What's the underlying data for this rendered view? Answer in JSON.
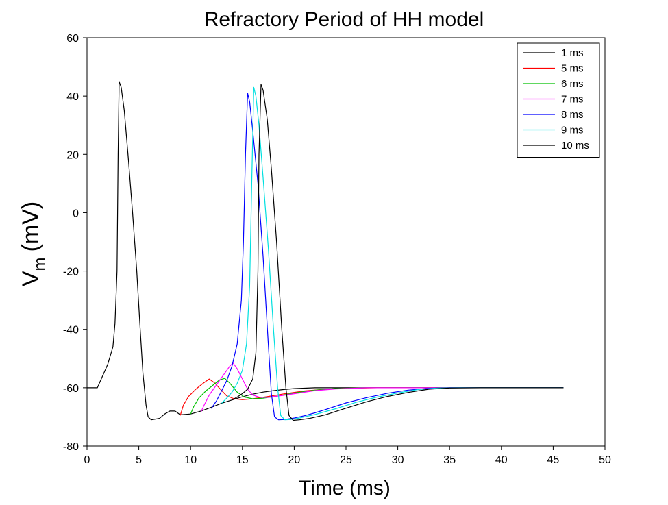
{
  "chart_data": {
    "type": "line",
    "title": "Refractory Period of HH model",
    "xlabel": "Time (ms)",
    "ylabel_main": "V",
    "ylabel_sub": "m",
    "ylabel_unit": "(mV)",
    "xlim": [
      0,
      50
    ],
    "ylim": [
      -80,
      60
    ],
    "xticks": [
      0,
      5,
      10,
      15,
      20,
      25,
      30,
      35,
      40,
      45,
      50
    ],
    "yticks": [
      -80,
      -60,
      -40,
      -20,
      0,
      20,
      40,
      60
    ],
    "grid": false,
    "legend_position": "top-right",
    "series": [
      {
        "name": "1 ms",
        "color": "#000000",
        "points": [
          [
            0,
            -60
          ],
          [
            1,
            -60
          ],
          [
            1.5,
            -56
          ],
          [
            2,
            -52
          ],
          [
            2.5,
            -46
          ],
          [
            2.7,
            -38
          ],
          [
            2.9,
            -20
          ],
          [
            3.0,
            20
          ],
          [
            3.1,
            45
          ],
          [
            3.3,
            43
          ],
          [
            3.6,
            35
          ],
          [
            4.0,
            18
          ],
          [
            4.4,
            0
          ],
          [
            4.8,
            -20
          ],
          [
            5.1,
            -38
          ],
          [
            5.4,
            -55
          ],
          [
            5.7,
            -66
          ],
          [
            5.9,
            -70
          ],
          [
            6.2,
            -71
          ],
          [
            7,
            -70.5
          ],
          [
            7.5,
            -69
          ],
          [
            8,
            -68
          ],
          [
            8.5,
            -68
          ],
          [
            9,
            -69.3
          ],
          [
            10,
            -69
          ],
          [
            11,
            -68
          ],
          [
            12,
            -66.7
          ],
          [
            13,
            -65.3
          ],
          [
            14,
            -64.2
          ],
          [
            15,
            -63.1
          ],
          [
            16,
            -62.2
          ],
          [
            17,
            -61.5
          ],
          [
            18,
            -61
          ],
          [
            19,
            -60.6
          ],
          [
            20,
            -60.3
          ],
          [
            22,
            -60
          ],
          [
            25,
            -60
          ],
          [
            30,
            -60
          ],
          [
            35,
            -60
          ],
          [
            40,
            -60
          ],
          [
            46,
            -60
          ]
        ]
      },
      {
        "name": "5 ms",
        "color": "#ff0000",
        "points": [
          [
            9,
            -69.5
          ],
          [
            9.3,
            -66
          ],
          [
            9.8,
            -63
          ],
          [
            10.5,
            -60.5
          ],
          [
            11.2,
            -58.5
          ],
          [
            11.8,
            -57
          ],
          [
            12.3,
            -58.3
          ],
          [
            13,
            -61
          ],
          [
            13.5,
            -62.8
          ],
          [
            14.2,
            -63.8
          ],
          [
            15,
            -64.1
          ],
          [
            16,
            -63.8
          ],
          [
            17.5,
            -63
          ],
          [
            19,
            -62.1
          ],
          [
            21,
            -61.1
          ],
          [
            23,
            -60.5
          ],
          [
            25,
            -60.2
          ],
          [
            28,
            -60
          ],
          [
            30,
            -60
          ],
          [
            35,
            -60
          ],
          [
            40,
            -60
          ],
          [
            46,
            -60
          ]
        ]
      },
      {
        "name": "6 ms",
        "color": "#00c000",
        "points": [
          [
            10,
            -69
          ],
          [
            10.3,
            -66.5
          ],
          [
            10.8,
            -63.5
          ],
          [
            11.5,
            -61
          ],
          [
            12.2,
            -59
          ],
          [
            12.8,
            -57.3
          ],
          [
            13.3,
            -56.8
          ],
          [
            13.8,
            -58.5
          ],
          [
            14.5,
            -61.5
          ],
          [
            15.2,
            -63.2
          ],
          [
            16,
            -63.8
          ],
          [
            17,
            -63.6
          ],
          [
            18.5,
            -62.8
          ],
          [
            20,
            -61.8
          ],
          [
            22,
            -60.8
          ],
          [
            24,
            -60.3
          ],
          [
            27,
            -60
          ],
          [
            30,
            -60
          ],
          [
            35,
            -60
          ],
          [
            40,
            -60
          ],
          [
            46,
            -60
          ]
        ]
      },
      {
        "name": "7 ms",
        "color": "#ff00ff",
        "points": [
          [
            11,
            -68.3
          ],
          [
            11.3,
            -66
          ],
          [
            11.8,
            -62.5
          ],
          [
            12.5,
            -59
          ],
          [
            13.2,
            -55.5
          ],
          [
            13.8,
            -52.5
          ],
          [
            14.1,
            -51.5
          ],
          [
            14.5,
            -53.5
          ],
          [
            15,
            -57
          ],
          [
            15.5,
            -60.5
          ],
          [
            16,
            -62.5
          ],
          [
            16.7,
            -63.3
          ],
          [
            17.5,
            -63.3
          ],
          [
            19,
            -62.6
          ],
          [
            20.5,
            -61.8
          ],
          [
            22,
            -61
          ],
          [
            24,
            -60.4
          ],
          [
            27,
            -60
          ],
          [
            30,
            -60
          ],
          [
            35,
            -60
          ],
          [
            40,
            -60
          ],
          [
            46,
            -60
          ]
        ]
      },
      {
        "name": "8 ms",
        "color": "#0000ff",
        "points": [
          [
            12,
            -67.1
          ],
          [
            12.5,
            -64.5
          ],
          [
            13,
            -61
          ],
          [
            13.5,
            -57.5
          ],
          [
            14,
            -52.5
          ],
          [
            14.5,
            -45
          ],
          [
            14.9,
            -30
          ],
          [
            15.1,
            -10
          ],
          [
            15.3,
            20
          ],
          [
            15.5,
            41
          ],
          [
            15.7,
            38
          ],
          [
            16,
            28
          ],
          [
            16.5,
            10
          ],
          [
            17,
            -15
          ],
          [
            17.5,
            -45
          ],
          [
            17.8,
            -62
          ],
          [
            18.1,
            -70
          ],
          [
            18.5,
            -71
          ],
          [
            19,
            -70.9
          ],
          [
            20,
            -70.4
          ],
          [
            21,
            -69.6
          ],
          [
            22,
            -68.6
          ],
          [
            23,
            -67.5
          ],
          [
            25,
            -65.2
          ],
          [
            27,
            -63.4
          ],
          [
            29,
            -61.9
          ],
          [
            31,
            -60.8
          ],
          [
            33,
            -60.2
          ],
          [
            35,
            -60
          ],
          [
            40,
            -60
          ],
          [
            46,
            -60
          ]
        ]
      },
      {
        "name": "9 ms",
        "color": "#00e0e0",
        "points": [
          [
            13,
            -65.3
          ],
          [
            13.5,
            -63.5
          ],
          [
            14,
            -61.5
          ],
          [
            14.5,
            -58.5
          ],
          [
            15,
            -54
          ],
          [
            15.4,
            -45
          ],
          [
            15.7,
            -25
          ],
          [
            15.9,
            10
          ],
          [
            16.1,
            43
          ],
          [
            16.3,
            40
          ],
          [
            16.6,
            30
          ],
          [
            17,
            12
          ],
          [
            17.5,
            -12
          ],
          [
            18,
            -40
          ],
          [
            18.4,
            -60
          ],
          [
            18.7,
            -69.5
          ],
          [
            19.1,
            -71
          ],
          [
            19.6,
            -70.9
          ],
          [
            20.5,
            -70.4
          ],
          [
            22,
            -69.2
          ],
          [
            24,
            -67.2
          ],
          [
            26,
            -65
          ],
          [
            28,
            -63.2
          ],
          [
            30,
            -61.8
          ],
          [
            32,
            -60.6
          ],
          [
            34,
            -60.1
          ],
          [
            36,
            -60
          ],
          [
            40,
            -60
          ],
          [
            46,
            -60
          ]
        ]
      },
      {
        "name": "10 ms",
        "color": "#000000",
        "points": [
          [
            14,
            -64.2
          ],
          [
            14.5,
            -63.2
          ],
          [
            15,
            -62
          ],
          [
            15.5,
            -60.5
          ],
          [
            16,
            -57
          ],
          [
            16.3,
            -48
          ],
          [
            16.5,
            -20
          ],
          [
            16.6,
            20
          ],
          [
            16.8,
            44
          ],
          [
            17,
            42
          ],
          [
            17.4,
            32
          ],
          [
            17.8,
            15
          ],
          [
            18.3,
            -10
          ],
          [
            18.8,
            -40
          ],
          [
            19.2,
            -60
          ],
          [
            19.5,
            -69.5
          ],
          [
            19.9,
            -71.2
          ],
          [
            20.5,
            -71
          ],
          [
            21.5,
            -70.5
          ],
          [
            23,
            -69.3
          ],
          [
            25,
            -67
          ],
          [
            27,
            -64.8
          ],
          [
            29,
            -63
          ],
          [
            31,
            -61.6
          ],
          [
            33,
            -60.5
          ],
          [
            35,
            -60.1
          ],
          [
            38,
            -60
          ],
          [
            42,
            -60
          ],
          [
            46,
            -60
          ]
        ]
      }
    ]
  }
}
